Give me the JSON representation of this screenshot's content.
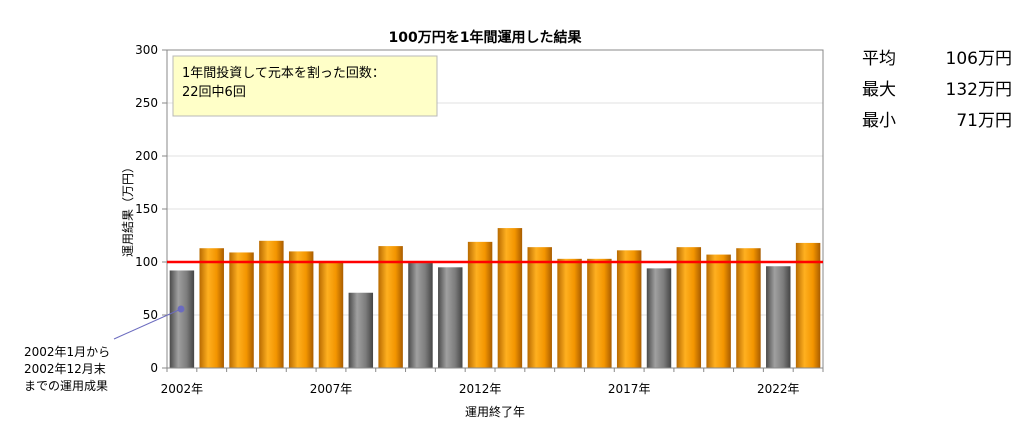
{
  "chart_data": {
    "type": "bar",
    "title": "100万円を1年間運用した結果",
    "xlabel": "運用終了年",
    "ylabel": "運用結果（万円）",
    "ylim": [
      0,
      300
    ],
    "yticks": [
      0,
      50,
      100,
      150,
      200,
      250,
      300
    ],
    "categories": [
      "2002",
      "2003",
      "2004",
      "2005",
      "2006",
      "2007",
      "2008",
      "2009",
      "2010",
      "2011",
      "2012",
      "2013",
      "2014",
      "2015",
      "2016",
      "2017",
      "2018",
      "2019",
      "2020",
      "2021",
      "2022",
      "2023"
    ],
    "x_tick_labels": [
      {
        "index": 0,
        "label": "2002年"
      },
      {
        "index": 5,
        "label": "2007年"
      },
      {
        "index": 10,
        "label": "2012年"
      },
      {
        "index": 15,
        "label": "2017年"
      },
      {
        "index": 20,
        "label": "2022年"
      }
    ],
    "values": [
      92,
      113,
      109,
      120,
      110,
      101,
      71,
      115,
      99,
      95,
      119,
      132,
      114,
      103,
      103,
      111,
      94,
      114,
      107,
      113,
      96,
      118
    ],
    "below_principal": [
      true,
      false,
      false,
      false,
      false,
      false,
      true,
      false,
      true,
      true,
      false,
      false,
      false,
      false,
      false,
      false,
      true,
      false,
      false,
      false,
      true,
      false
    ],
    "reference_line": 100,
    "colors": {
      "gain": "#f59a00",
      "loss": "#7a7a7a",
      "reference": "#ff0000",
      "annotation_bg": "#ffffc8",
      "marker": "#6b6bbf"
    },
    "annotation": {
      "line1": "1年間投資して元本を割った回数：",
      "line2": "22回中6回"
    },
    "callout": {
      "lines": [
        "2002年1月から",
        "2002年12月末",
        "までの運用成果"
      ]
    }
  },
  "stats": [
    {
      "label": "平均",
      "value": "106万円"
    },
    {
      "label": "最大",
      "value": "132万円"
    },
    {
      "label": "最小",
      "value": "71万円"
    }
  ]
}
